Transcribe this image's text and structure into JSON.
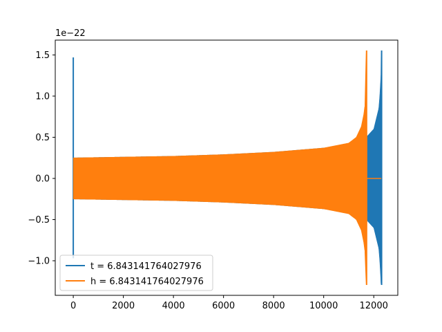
{
  "chart_data": {
    "type": "line",
    "title": "",
    "xlabel": "",
    "ylabel": "",
    "offset_label": "1e−22",
    "xlim": [
      -720,
      12960
    ],
    "ylim": [
      -1.42,
      1.68
    ],
    "x_ticks": [
      0,
      2000,
      4000,
      6000,
      8000,
      10000,
      12000
    ],
    "x_tick_labels": [
      "0",
      "2000",
      "4000",
      "6000",
      "8000",
      "10000",
      "12000"
    ],
    "y_ticks": [
      -1.0,
      -0.5,
      0.0,
      0.5,
      1.0,
      1.5
    ],
    "y_tick_labels": [
      "−1.0",
      "−0.5",
      "0.0",
      "0.5",
      "1.0",
      "1.5"
    ],
    "grid": false,
    "legend_position": "lower-left",
    "series": [
      {
        "name": "t = 6.843141764027976",
        "color": "#1f77b4",
        "start_spike": {
          "x": 0,
          "max": 1.47,
          "min": -0.97
        },
        "envelope": [
          {
            "x": 0,
            "amp": 0.25
          },
          {
            "x": 2000,
            "amp": 0.26
          },
          {
            "x": 4000,
            "amp": 0.27
          },
          {
            "x": 6000,
            "amp": 0.29
          },
          {
            "x": 8000,
            "amp": 0.32
          },
          {
            "x": 10000,
            "amp": 0.37
          },
          {
            "x": 11000,
            "amp": 0.41
          },
          {
            "x": 11600,
            "amp": 0.46
          },
          {
            "x": 11700,
            "amp": 0.5
          },
          {
            "x": 12000,
            "amp": 0.6
          },
          {
            "x": 12200,
            "amp": 0.85
          },
          {
            "x": 12240,
            "amp": 1.0
          },
          {
            "x": 12290,
            "amp": 1.27
          }
        ],
        "end_spike": {
          "x": 12300,
          "max": 1.55,
          "min": -1.29
        }
      },
      {
        "name": "h = 6.843141764027976",
        "color": "#ff7f0e",
        "envelope": [
          {
            "x": 0,
            "amp": 0.25
          },
          {
            "x": 2000,
            "amp": 0.26
          },
          {
            "x": 4000,
            "amp": 0.27
          },
          {
            "x": 6000,
            "amp": 0.29
          },
          {
            "x": 8000,
            "amp": 0.32
          },
          {
            "x": 10000,
            "amp": 0.37
          },
          {
            "x": 11000,
            "amp": 0.43
          },
          {
            "x": 11300,
            "amp": 0.5
          },
          {
            "x": 11500,
            "amp": 0.63
          },
          {
            "x": 11600,
            "amp": 0.78
          },
          {
            "x": 11650,
            "amp": 0.9
          }
        ],
        "end_spike": {
          "x": 11700,
          "max": 1.55,
          "min": -1.29
        },
        "tail": {
          "x_start": 11720,
          "x_end": 12300,
          "value": 0.0
        }
      }
    ]
  }
}
